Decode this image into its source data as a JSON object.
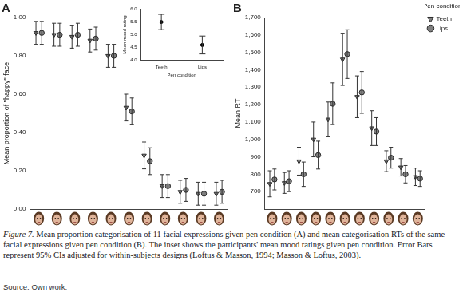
{
  "chart_data": [
    {
      "type": "scatter",
      "title": "A",
      "y_label": "Mean proportion of \"happy\" face",
      "categories": [
        null,
        null,
        null,
        null,
        null,
        null,
        null,
        null,
        null,
        null,
        null
      ],
      "series": [
        {
          "name": "Teeth",
          "color": "#808080",
          "marker": "triangle_down",
          "values": [
            0.92,
            0.91,
            0.9,
            0.88,
            0.8,
            0.53,
            0.28,
            0.12,
            0.09,
            0.08,
            0.08
          ],
          "errors": [
            0.06,
            0.06,
            0.06,
            0.06,
            0.06,
            0.07,
            0.07,
            0.06,
            0.06,
            0.06,
            0.06
          ]
        },
        {
          "name": "Lips",
          "color": "#808080",
          "marker": "circle",
          "values": [
            0.92,
            0.91,
            0.91,
            0.89,
            0.8,
            0.51,
            0.25,
            0.12,
            0.1,
            0.08,
            0.09
          ],
          "errors": [
            0.06,
            0.06,
            0.06,
            0.06,
            0.06,
            0.07,
            0.07,
            0.06,
            0.06,
            0.06,
            0.06
          ]
        }
      ],
      "ylim": [
        0,
        1.0
      ],
      "yticks": [
        {
          "value": 0,
          "label": "0.00"
        },
        {
          "value": 0.2,
          "label": "0.20"
        },
        {
          "value": 0.4,
          "label": "0.40"
        },
        {
          "value": 0.6,
          "label": "0.60"
        },
        {
          "value": 0.8,
          "label": "0.80"
        },
        {
          "value": 1.0,
          "label": "1.00"
        }
      ],
      "grid": false
    },
    {
      "type": "scatter",
      "title": "B",
      "y_label": "Mean RT",
      "legend_title": "Pen condition",
      "legend": "right",
      "categories": [
        null,
        null,
        null,
        null,
        null,
        null,
        null,
        null,
        null,
        null,
        null
      ],
      "series": [
        {
          "name": "Teeth",
          "color": "#808080",
          "marker": "triangle_down",
          "values": [
            745,
            750,
            875,
            1000,
            1115,
            1460,
            1245,
            1065,
            875,
            840,
            785
          ],
          "errors": [
            75,
            60,
            80,
            100,
            100,
            150,
            120,
            100,
            60,
            50,
            50
          ]
        },
        {
          "name": "Lips",
          "color": "#808080",
          "marker": "circle",
          "values": [
            770,
            760,
            800,
            910,
            1205,
            1490,
            1270,
            1045,
            895,
            800,
            775
          ],
          "errors": [
            60,
            60,
            70,
            80,
            120,
            140,
            120,
            80,
            60,
            50,
            45
          ]
        }
      ],
      "ylim": [
        600,
        1700
      ],
      "yticks": [
        700,
        800,
        900,
        {
          "value": 1000,
          "label": "1,000"
        },
        {
          "value": 1100,
          "label": "1,100"
        },
        {
          "value": 1200,
          "label": "1,200"
        },
        {
          "value": 1300,
          "label": "1,300"
        },
        {
          "value": 1400,
          "label": "1,400"
        },
        {
          "value": 1500,
          "label": "1,500"
        },
        {
          "value": 1600,
          "label": "1,600"
        },
        {
          "value": 1700,
          "label": "1,700"
        }
      ],
      "grid": false
    },
    {
      "type": "scatter",
      "y_label": "Mean mood rating",
      "x_label": "Pen condition",
      "categories": [
        "Teeth",
        "Lips"
      ],
      "values": [
        5.5,
        4.6
      ],
      "errors": [
        0.3,
        0.35
      ],
      "color": "#000000",
      "marker": "circle",
      "ylim": [
        4.0,
        6.0
      ],
      "yticks": [
        {
          "value": 4.0,
          "label": "4.0"
        },
        {
          "value": 4.5,
          "label": "4.5"
        },
        {
          "value": 5.0,
          "label": "5.0"
        },
        {
          "value": 5.5,
          "label": "5.5"
        },
        {
          "value": 6.0,
          "label": "6.0"
        }
      ],
      "grid": false
    }
  ],
  "caption_label": "Figure 7.",
  "caption": "Mean proportion categorisation of 11 facial expressions given pen condition (A) and mean categorisation RTs of the same facial expressions given pen condition (B). The inset shows the participants' mean mood ratings given pen condition. Error Bars represent 95% CIs adjusted for within-subjects designs (Loftus & Masson, 1994; Masson & Loftus, 2003).",
  "source": "Source: Own work."
}
